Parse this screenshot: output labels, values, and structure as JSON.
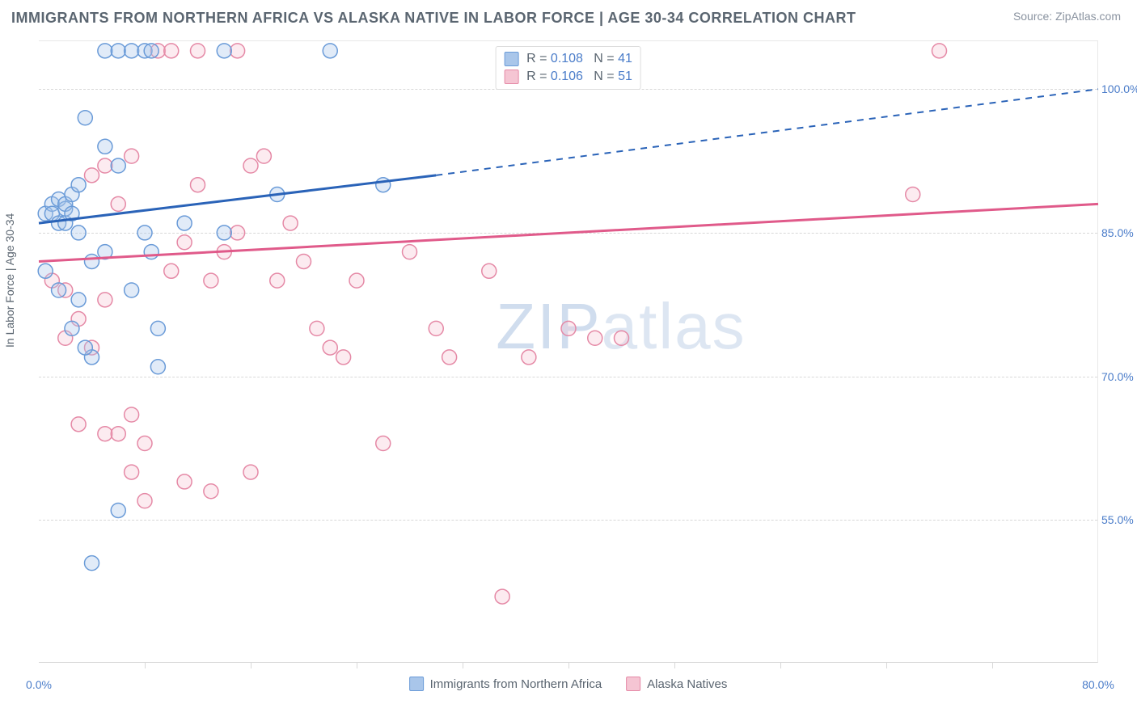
{
  "title": "IMMIGRANTS FROM NORTHERN AFRICA VS ALASKA NATIVE IN LABOR FORCE | AGE 30-34 CORRELATION CHART",
  "source": "Source: ZipAtlas.com",
  "ylabel": "In Labor Force | Age 30-34",
  "watermark_a": "ZIP",
  "watermark_b": "atlas",
  "chart": {
    "type": "scatter",
    "xlim": [
      0,
      80
    ],
    "ylim": [
      40,
      105
    ],
    "x_ticks": [
      0,
      80
    ],
    "x_tick_labels": [
      "0.0%",
      "80.0%"
    ],
    "x_minor_ticks": [
      8,
      16,
      24,
      32,
      40,
      48,
      56,
      64,
      72
    ],
    "y_ticks": [
      55,
      70,
      85,
      100
    ],
    "y_tick_labels": [
      "55.0%",
      "70.0%",
      "85.0%",
      "100.0%"
    ],
    "grid_color": "#d8d8d8",
    "background_color": "#ffffff",
    "marker_radius": 9,
    "series": [
      {
        "name": "Immigrants from Northern Africa",
        "fill": "#a9c6ea",
        "stroke": "#6a9bd8",
        "r": "0.108",
        "n": "41",
        "trend": {
          "x1": 0,
          "y1": 86,
          "x2": 30,
          "y2": 91,
          "dash_to_x": 80,
          "dash_to_y": 100,
          "color": "#2a63b8",
          "width": 3
        },
        "points": [
          [
            0.5,
            87
          ],
          [
            1,
            88
          ],
          [
            1,
            87
          ],
          [
            1.5,
            86
          ],
          [
            1.5,
            88.5
          ],
          [
            2,
            87.5
          ],
          [
            2,
            86
          ],
          [
            2,
            88
          ],
          [
            2.5,
            89
          ],
          [
            2.5,
            87
          ],
          [
            3,
            85
          ],
          [
            3,
            90
          ],
          [
            3.5,
            97
          ],
          [
            5,
            104
          ],
          [
            6,
            104
          ],
          [
            7,
            104
          ],
          [
            8,
            104
          ],
          [
            8.5,
            104
          ],
          [
            14,
            104
          ],
          [
            22,
            104
          ],
          [
            4,
            82
          ],
          [
            5,
            83
          ],
          [
            6,
            92
          ],
          [
            7,
            79
          ],
          [
            8,
            85
          ],
          [
            8.5,
            83
          ],
          [
            9,
            75
          ],
          [
            11,
            86
          ],
          [
            14,
            85
          ],
          [
            18,
            89
          ],
          [
            26,
            90
          ],
          [
            4,
            72
          ],
          [
            9,
            71
          ],
          [
            6,
            56
          ],
          [
            4,
            50.5
          ],
          [
            0.5,
            81
          ],
          [
            1.5,
            79
          ],
          [
            2.5,
            75
          ],
          [
            3,
            78
          ],
          [
            3.5,
            73
          ],
          [
            5,
            94
          ]
        ]
      },
      {
        "name": "Alaska Natives",
        "fill": "#f5c5d3",
        "stroke": "#e589a6",
        "r": "0.106",
        "n": "51",
        "trend": {
          "x1": 0,
          "y1": 82,
          "x2": 80,
          "y2": 88,
          "color": "#e05a8a",
          "width": 3
        },
        "points": [
          [
            1,
            80
          ],
          [
            2,
            79
          ],
          [
            3,
            76
          ],
          [
            4,
            91
          ],
          [
            5,
            92
          ],
          [
            6,
            88
          ],
          [
            7,
            93
          ],
          [
            2,
            74
          ],
          [
            3,
            65
          ],
          [
            4,
            73
          ],
          [
            5,
            64
          ],
          [
            6,
            64
          ],
          [
            7,
            66
          ],
          [
            8,
            63
          ],
          [
            9,
            104
          ],
          [
            10,
            104
          ],
          [
            12,
            104
          ],
          [
            15,
            104
          ],
          [
            10,
            81
          ],
          [
            11,
            84
          ],
          [
            12,
            90
          ],
          [
            13,
            80
          ],
          [
            14,
            83
          ],
          [
            15,
            85
          ],
          [
            16,
            92
          ],
          [
            17,
            93
          ],
          [
            18,
            80
          ],
          [
            19,
            86
          ],
          [
            20,
            82
          ],
          [
            21,
            75
          ],
          [
            22,
            73
          ],
          [
            23,
            72
          ],
          [
            24,
            80
          ],
          [
            26,
            63
          ],
          [
            28,
            83
          ],
          [
            30,
            75
          ],
          [
            31,
            72
          ],
          [
            34,
            81
          ],
          [
            37,
            72
          ],
          [
            40,
            75
          ],
          [
            42,
            74
          ],
          [
            44,
            74
          ],
          [
            35,
            47
          ],
          [
            68,
            104
          ],
          [
            66,
            89
          ],
          [
            5,
            78
          ],
          [
            7,
            60
          ],
          [
            8,
            57
          ],
          [
            16,
            60
          ],
          [
            11,
            59
          ],
          [
            13,
            58
          ]
        ]
      }
    ]
  },
  "legend_bottom": [
    {
      "label": "Immigrants from Northern Africa",
      "fill": "#a9c6ea",
      "stroke": "#6a9bd8"
    },
    {
      "label": "Alaska Natives",
      "fill": "#f5c5d3",
      "stroke": "#e589a6"
    }
  ]
}
